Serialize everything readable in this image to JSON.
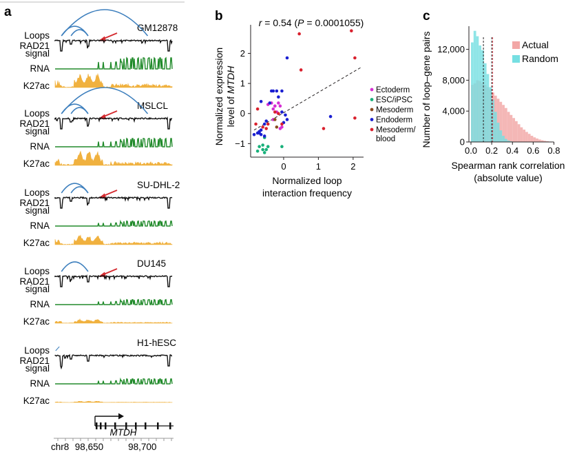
{
  "panel_a": {
    "label": "a",
    "track_labels": {
      "loops": "Loops",
      "rad21": "RAD21",
      "signal": "signal",
      "rna": "RNA",
      "k27ac": "K27ac"
    },
    "cells": [
      {
        "name": "GM12878",
        "loop_ends_kb": [
          [
            98624,
            98705
          ],
          [
            98624,
            98649
          ],
          [
            98633,
            98649
          ]
        ],
        "has_arrow": true
      },
      {
        "name": "MSLCL",
        "loop_ends_kb": [
          [
            98624,
            98705
          ],
          [
            98624,
            98649
          ],
          [
            98633,
            98649
          ]
        ],
        "has_arrow": true
      },
      {
        "name": "SU-DHL-2",
        "loop_ends_kb": [
          [
            98624,
            98649
          ],
          [
            98633,
            98649
          ]
        ],
        "has_arrow": true
      },
      {
        "name": "DU145",
        "loop_ends_kb": [
          [
            98624,
            98649
          ]
        ],
        "has_arrow": true
      },
      {
        "name": "H1-hESC",
        "loop_ends_kb": [],
        "has_arrow": false
      }
    ],
    "gene": "MTDH",
    "chrom": "chr8",
    "coord_ticks": [
      "98,650",
      "98,700"
    ],
    "coord_tick_values_kb": [
      98650,
      98700
    ],
    "coord_range_kb": [
      98618,
      98728
    ],
    "colors": {
      "loop": "#3d7fbd",
      "arrow": "#d42a2f",
      "rad21": "#111111",
      "rna": "#208a2a",
      "k27ac": "#f0b13f"
    }
  },
  "chart_data": [
    {
      "panel": "b",
      "type": "scatter",
      "annotation_pre": "r = 0.54 (",
      "annotation_p": "P",
      "annotation_post": " = 0.0001055)",
      "xlabel_1": "Normalized loop",
      "xlabel_2": "interaction frequency",
      "ylabel_1": "Normalized expression",
      "ylabel_2": "level of",
      "ylabel_gene": "MTDH",
      "xlim": [
        -0.95,
        2.3
      ],
      "ylim": [
        -1.45,
        2.95
      ],
      "xticks": [
        0,
        1,
        2
      ],
      "xtick_labels": [
        "0",
        "1",
        "2"
      ],
      "yticks": [
        -1,
        0,
        1,
        2
      ],
      "ytick_labels": [
        "−1",
        "0",
        "1",
        "2"
      ],
      "trendline": {
        "x": [
          -0.85,
          2.25
        ],
        "y": [
          -0.55,
          1.55
        ]
      },
      "groups": [
        {
          "name": "Ectoderm",
          "color": "#d62ed3",
          "points": [
            [
              -0.35,
              0.35
            ],
            [
              -0.3,
              0.15
            ],
            [
              -0.25,
              0.25
            ],
            [
              -0.2,
              0.05
            ],
            [
              -0.45,
              0.3
            ],
            [
              -0.15,
              0.35
            ],
            [
              -0.1,
              0.25
            ],
            [
              -0.3,
              -0.2
            ],
            [
              -0.1,
              -0.5
            ],
            [
              -0.05,
              -0.45
            ],
            [
              -0.25,
              0.25
            ]
          ]
        },
        {
          "name": "ESC/iPSC",
          "color": "#18b07a",
          "points": [
            [
              -0.75,
              -1.25
            ],
            [
              -0.6,
              -1.05
            ],
            [
              -0.55,
              -1.3
            ],
            [
              -0.5,
              -1.2
            ],
            [
              -0.45,
              -1.1
            ],
            [
              -0.6,
              -1.2
            ],
            [
              -0.7,
              -1.1
            ],
            [
              -0.05,
              -1.1
            ],
            [
              -0.55,
              -0.8
            ]
          ]
        },
        {
          "name": "Mesoderm",
          "color": "#8a4a1e",
          "points": [
            [
              -0.25,
              -0.2
            ],
            [
              -0.2,
              -0.45
            ]
          ]
        },
        {
          "name": "Endoderm",
          "color": "#1a1fd1",
          "points": [
            [
              -0.85,
              -0.7
            ],
            [
              -0.75,
              -0.65
            ],
            [
              -0.7,
              -0.6
            ],
            [
              -0.65,
              -0.55
            ],
            [
              -0.7,
              -0.65
            ],
            [
              -0.55,
              -0.35
            ],
            [
              -0.65,
              0.4
            ],
            [
              -0.4,
              0.35
            ],
            [
              -0.35,
              0.75
            ],
            [
              -0.3,
              0.75
            ],
            [
              -0.2,
              0.75
            ],
            [
              -0.05,
              0.75
            ],
            [
              -0.15,
              0.55
            ],
            [
              -0.05,
              0.05
            ],
            [
              0.05,
              -0.05
            ],
            [
              0.1,
              -0.2
            ],
            [
              0.0,
              -0.3
            ],
            [
              0.1,
              1.85
            ],
            [
              1.35,
              -0.1
            ],
            [
              -0.55,
              -0.75
            ],
            [
              -0.5,
              -0.25
            ],
            [
              -0.65,
              -0.7
            ]
          ]
        },
        {
          "name": "Mesoderm/\nblood",
          "color": "#d9212e",
          "points": [
            [
              -0.8,
              -0.35
            ],
            [
              -0.75,
              0.15
            ],
            [
              -0.6,
              -0.45
            ],
            [
              -0.5,
              -0.5
            ],
            [
              -0.45,
              -0.35
            ],
            [
              -0.25,
              0.05
            ],
            [
              -0.15,
              0.0
            ],
            [
              -0.05,
              -0.35
            ],
            [
              0.45,
              2.65
            ],
            [
              0.5,
              1.45
            ],
            [
              1.15,
              -0.5
            ],
            [
              1.95,
              2.75
            ],
            [
              2.05,
              1.85
            ],
            [
              2.05,
              -0.15
            ]
          ]
        }
      ]
    },
    {
      "panel": "c",
      "type": "bar",
      "subtype": "overlaid histogram",
      "xlabel_1": "Spearman rank correlation",
      "xlabel_2": "(absolute value)",
      "ylabel": "Number of loop–gene pairs",
      "xlim": [
        -0.02,
        0.85
      ],
      "ylim": [
        0,
        15000
      ],
      "xticks": [
        0.0,
        0.2,
        0.4,
        0.6,
        0.8
      ],
      "xtick_labels": [
        "0.0",
        "0.2",
        "0.4",
        "0.6",
        "0.8"
      ],
      "yticks": [
        0,
        4000,
        8000,
        12000
      ],
      "ytick_labels": [
        "0",
        "4,000",
        "8,000",
        "12,000"
      ],
      "bin_width": 0.025,
      "bin_starts": [
        0.0,
        0.025,
        0.05,
        0.075,
        0.1,
        0.125,
        0.15,
        0.175,
        0.2,
        0.225,
        0.25,
        0.275,
        0.3,
        0.325,
        0.35,
        0.375,
        0.4,
        0.425,
        0.45,
        0.475,
        0.5,
        0.525,
        0.55,
        0.575,
        0.6,
        0.625,
        0.65,
        0.675,
        0.7,
        0.725,
        0.75,
        0.775
      ],
      "series": [
        {
          "name": "Actual",
          "color": "#f2a7a6",
          "values": [
            7400,
            7600,
            8000,
            7900,
            7600,
            7400,
            7100,
            6800,
            6400,
            6000,
            5600,
            5200,
            4800,
            4400,
            3900,
            3500,
            3100,
            2700,
            2300,
            1900,
            1600,
            1300,
            1050,
            800,
            600,
            450,
            320,
            220,
            150,
            90,
            50,
            25
          ],
          "mean": 0.2
        },
        {
          "name": "Random",
          "color": "#76dfe2",
          "values": [
            12900,
            14400,
            13700,
            12500,
            11900,
            10200,
            8800,
            7100,
            5500,
            3900,
            2500,
            1500,
            800,
            400,
            180,
            80,
            30,
            10,
            0,
            0,
            0,
            0,
            0,
            0,
            0,
            0,
            0,
            0,
            0,
            0,
            0,
            0
          ],
          "mean": 0.12
        }
      ]
    }
  ]
}
